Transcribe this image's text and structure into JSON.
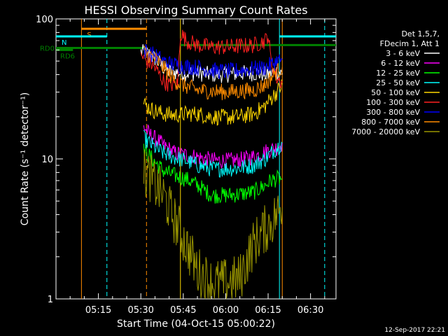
{
  "chart_data": {
    "type": "line",
    "title": "HESSI Observing Summary Count Rates",
    "xlabel": "Start Time (04-Oct-15 05:00:22)",
    "ylabel": "Count Rate (s⁻¹ detector⁻¹)",
    "x_unit": "minutes since 05:00",
    "xlim": [
      0,
      99
    ],
    "ylim": [
      1,
      100
    ],
    "y_scale": "log",
    "x_ticks": [
      {
        "value": 15,
        "label": "05:15"
      },
      {
        "value": 30,
        "label": "05:30"
      },
      {
        "value": 45,
        "label": "05:45"
      },
      {
        "value": 60,
        "label": "06:00"
      },
      {
        "value": 75,
        "label": "06:15"
      },
      {
        "value": 90,
        "label": "06:30"
      }
    ],
    "y_ticks": [
      {
        "value": 1,
        "label": "1"
      },
      {
        "value": 10,
        "label": "10"
      },
      {
        "value": 100,
        "label": "100"
      }
    ],
    "legend_header": [
      "Det 1,5,7,",
      "FDecim 1, Att 1"
    ],
    "legend_position": "right",
    "series": [
      {
        "name": "3 - 6 keV",
        "color": "#ffffff",
        "points": [
          [
            30,
            58
          ],
          [
            33,
            56
          ],
          [
            35,
            52
          ],
          [
            38,
            45
          ],
          [
            40,
            42
          ],
          [
            45,
            41
          ],
          [
            50,
            41
          ],
          [
            55,
            40
          ],
          [
            60,
            40
          ],
          [
            65,
            41
          ],
          [
            70,
            41
          ],
          [
            75,
            40
          ],
          [
            77,
            42
          ],
          [
            79,
            42
          ],
          [
            80,
            40
          ]
        ]
      },
      {
        "name": "6 - 12 keV",
        "color": "#ff00ff",
        "points": [
          [
            31,
            17
          ],
          [
            33,
            15
          ],
          [
            35,
            14
          ],
          [
            38,
            12.5
          ],
          [
            42,
            11
          ],
          [
            48,
            10.5
          ],
          [
            55,
            9.8
          ],
          [
            60,
            9.7
          ],
          [
            65,
            9.8
          ],
          [
            70,
            10.4
          ],
          [
            73,
            11
          ],
          [
            75,
            11.5
          ],
          [
            78,
            12
          ],
          [
            80,
            13
          ]
        ]
      },
      {
        "name": "12 - 25 keV",
        "color": "#00ff00",
        "points": [
          [
            31,
            11.5
          ],
          [
            33,
            10.5
          ],
          [
            35,
            9.5
          ],
          [
            38,
            8.2
          ],
          [
            42,
            7.6
          ],
          [
            46,
            7.2
          ],
          [
            50,
            6.5
          ],
          [
            55,
            5.5
          ],
          [
            60,
            5.5
          ],
          [
            65,
            5.6
          ],
          [
            70,
            5.8
          ],
          [
            74,
            6.5
          ],
          [
            76,
            7
          ],
          [
            78,
            7.2
          ],
          [
            80,
            7.2
          ]
        ]
      },
      {
        "name": "25 - 50 keV",
        "color": "#00ffff",
        "points": [
          [
            31,
            14
          ],
          [
            33,
            13
          ],
          [
            35,
            12
          ],
          [
            38,
            11
          ],
          [
            42,
            10.2
          ],
          [
            46,
            9.7
          ],
          [
            50,
            9
          ],
          [
            55,
            8.5
          ],
          [
            60,
            8.5
          ],
          [
            65,
            8.6
          ],
          [
            70,
            9
          ],
          [
            74,
            10
          ],
          [
            76,
            11
          ],
          [
            78,
            12
          ],
          [
            80,
            13
          ]
        ]
      },
      {
        "name": "50 - 100 keV",
        "color": "#ffd700",
        "points": [
          [
            31,
            25
          ],
          [
            33,
            23
          ],
          [
            35,
            22
          ],
          [
            38,
            21
          ],
          [
            42,
            20.5
          ],
          [
            46,
            21
          ],
          [
            50,
            21
          ],
          [
            55,
            20
          ],
          [
            60,
            19.8
          ],
          [
            65,
            20
          ],
          [
            70,
            21
          ],
          [
            74,
            24
          ],
          [
            76,
            27
          ],
          [
            78,
            30
          ],
          [
            80,
            34
          ]
        ]
      },
      {
        "name": "100 - 300 keV",
        "color": "#ff2020",
        "points": [
          [
            30,
            55
          ],
          [
            32,
            50
          ],
          [
            34,
            47
          ],
          [
            36,
            42
          ],
          [
            38,
            36
          ],
          [
            40,
            34
          ],
          [
            43,
            34
          ],
          [
            44,
            80
          ],
          [
            46,
            70
          ],
          [
            50,
            65
          ],
          [
            55,
            63
          ],
          [
            60,
            63
          ],
          [
            65,
            64
          ],
          [
            70,
            65
          ],
          [
            74,
            70
          ],
          [
            75,
            78
          ],
          [
            76,
            50
          ],
          [
            78,
            38
          ],
          [
            80,
            35
          ]
        ]
      },
      {
        "name": "300 - 800 keV",
        "color": "#0000ff",
        "points": [
          [
            31,
            60
          ],
          [
            33,
            57
          ],
          [
            35,
            55
          ],
          [
            38,
            50
          ],
          [
            40,
            48
          ],
          [
            45,
            46
          ],
          [
            50,
            45
          ],
          [
            55,
            43
          ],
          [
            60,
            42
          ],
          [
            65,
            43
          ],
          [
            70,
            44
          ],
          [
            74,
            45
          ],
          [
            76,
            47
          ],
          [
            78,
            50
          ],
          [
            80,
            51
          ]
        ]
      },
      {
        "name": "800 - 7000 keV",
        "color": "#ff8c00",
        "points": [
          [
            31,
            58
          ],
          [
            33,
            55
          ],
          [
            35,
            52
          ],
          [
            38,
            45
          ],
          [
            40,
            40
          ],
          [
            43,
            35
          ],
          [
            46,
            33
          ],
          [
            50,
            31
          ],
          [
            55,
            30.5
          ],
          [
            60,
            30
          ],
          [
            65,
            30.5
          ],
          [
            70,
            31
          ],
          [
            74,
            34
          ],
          [
            76,
            38
          ],
          [
            78,
            42
          ],
          [
            80,
            45
          ]
        ]
      },
      {
        "name": "7000 - 20000 keV",
        "color": "#9a9600",
        "points": [
          [
            31,
            8
          ],
          [
            33,
            7.5
          ],
          [
            35,
            6.5
          ],
          [
            38,
            5.5
          ],
          [
            41,
            4
          ],
          [
            44,
            3
          ],
          [
            47,
            2.2
          ],
          [
            50,
            1.6
          ],
          [
            55,
            1.3
          ],
          [
            60,
            1.3
          ],
          [
            65,
            1.4
          ],
          [
            68,
            2
          ],
          [
            70,
            2.5
          ],
          [
            73,
            3
          ],
          [
            76,
            3.5
          ],
          [
            78,
            4
          ],
          [
            80,
            4.5
          ]
        ]
      }
    ],
    "state_bars": [
      {
        "label": "S",
        "color": "#ff8c00",
        "y": 85,
        "x_start": 9,
        "x_end": 32
      },
      {
        "label": "N",
        "color": "#00ffff",
        "y": 75,
        "x_start": 0,
        "x_end": 18
      },
      {
        "label": "",
        "color": "#00ffff",
        "y": 75,
        "x_start": 79,
        "x_end": 99
      },
      {
        "label": "RD0",
        "color": "#008000",
        "y": 62,
        "x_start": 0,
        "x_end": 32
      },
      {
        "label": "",
        "color": "#008000",
        "y": 65,
        "x_start": 44,
        "x_end": 99
      },
      {
        "label": "RD6",
        "color": "#008000",
        "y": 60,
        "x_start": 0,
        "x_end": 6
      }
    ],
    "vertical_markers": [
      {
        "x": 9,
        "color": "#ff8c00",
        "style": "solid"
      },
      {
        "x": 18,
        "color": "#00ffff",
        "style": "dashed"
      },
      {
        "x": 32,
        "color": "#ff8c00",
        "style": "dashed"
      },
      {
        "x": 44,
        "color": "#ffd700",
        "style": "solid"
      },
      {
        "x": 79,
        "color": "#00ffff",
        "style": "solid"
      },
      {
        "x": 80,
        "color": "#ff8c00",
        "style": "solid"
      },
      {
        "x": 95,
        "color": "#00ffff",
        "style": "dashed"
      }
    ],
    "footer_date": "12-Sep-2017 22:21"
  }
}
